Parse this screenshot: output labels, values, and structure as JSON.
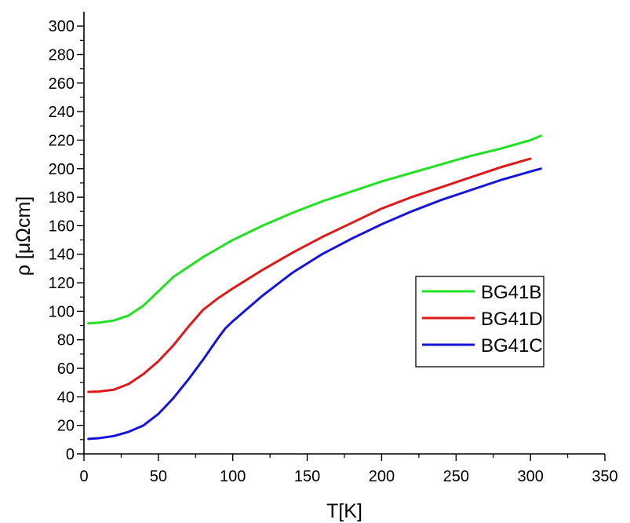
{
  "chart_data": {
    "type": "line",
    "title": "",
    "xlabel": "T[K]",
    "ylabel": "ρ [μΩcm]",
    "xlim": [
      0,
      350
    ],
    "ylim": [
      0,
      310
    ],
    "x_ticks": [
      0,
      50,
      100,
      150,
      200,
      250,
      300,
      350
    ],
    "y_ticks": [
      0,
      20,
      40,
      60,
      80,
      100,
      120,
      140,
      160,
      180,
      200,
      220,
      240,
      260,
      280,
      300
    ],
    "grid": false,
    "legend_position": "center-right",
    "series": [
      {
        "name": "BG41B",
        "color": "#22e022",
        "x": [
          3,
          10,
          20,
          30,
          40,
          50,
          55,
          60,
          70,
          80,
          90,
          100,
          120,
          140,
          160,
          180,
          200,
          220,
          240,
          260,
          280,
          300,
          307
        ],
        "y": [
          91.5,
          92,
          93.5,
          97,
          104,
          114,
          119,
          124,
          131,
          138,
          144,
          150,
          160,
          169,
          177,
          184,
          191,
          197,
          203,
          209,
          214,
          220,
          223
        ]
      },
      {
        "name": "BG41D",
        "color": "#dd1a1a",
        "x": [
          3,
          10,
          20,
          30,
          40,
          50,
          60,
          70,
          80,
          90,
          100,
          120,
          140,
          160,
          180,
          200,
          220,
          240,
          260,
          280,
          300
        ],
        "y": [
          43.5,
          43.7,
          45,
          49,
          56,
          65,
          76,
          89,
          101,
          109,
          116,
          129,
          141,
          152,
          162,
          172,
          180,
          187,
          194,
          201,
          207
        ]
      },
      {
        "name": "BG41C",
        "color": "#1515d8",
        "x": [
          3,
          10,
          20,
          30,
          40,
          50,
          60,
          70,
          80,
          90,
          95,
          100,
          120,
          140,
          160,
          180,
          200,
          220,
          240,
          260,
          280,
          300,
          307
        ],
        "y": [
          10.5,
          11,
          12.5,
          15.5,
          20,
          28,
          39,
          52,
          66,
          81,
          88,
          93,
          111,
          127,
          140,
          151,
          161,
          170,
          178,
          185,
          192,
          198,
          200
        ]
      }
    ]
  }
}
